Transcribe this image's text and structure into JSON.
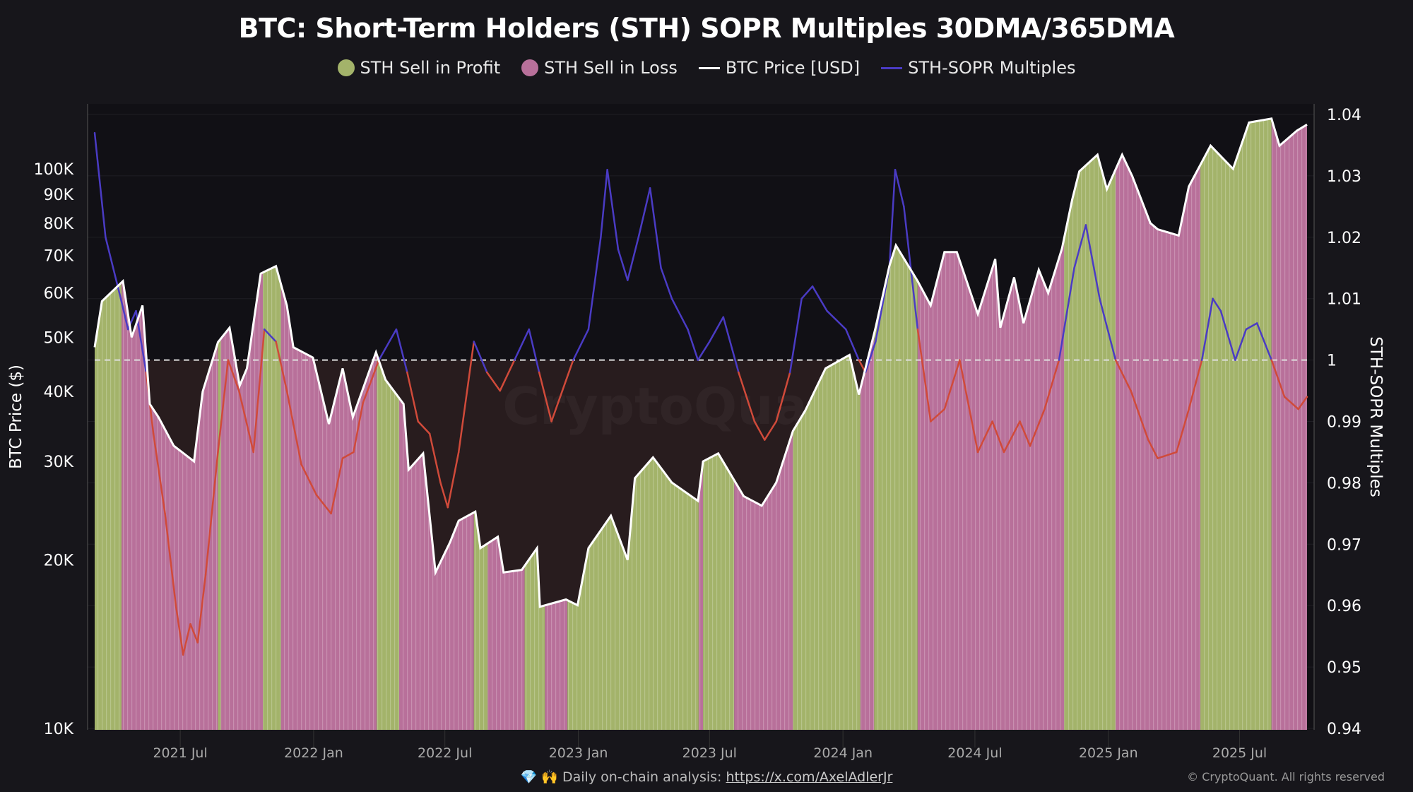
{
  "chart_data": {
    "type": "bar+line",
    "title": "BTC: Short-Term Holders (STH) SOPR Multiples 30DMA/365DMA",
    "legend": [
      {
        "name": "STH Sell in Profit",
        "color": "#a3b36a",
        "kind": "dot"
      },
      {
        "name": "STH Sell in Loss",
        "color": "#b8709a",
        "kind": "dot"
      },
      {
        "name": "BTC Price [USD]",
        "color": "#ffffff",
        "kind": "line"
      },
      {
        "name": "STH-SOPR Multiples",
        "color": "#4a3bc4",
        "kind": "line"
      }
    ],
    "legend_placement": "top-center",
    "ylabel_left": "BTC Price ($)",
    "ylabel_right": "STH-SOPR Multiples",
    "left_axis": {
      "scale": "log",
      "range": [
        10000,
        130000
      ],
      "ticks": [
        10000,
        20000,
        30000,
        40000,
        50000,
        60000,
        70000,
        80000,
        90000,
        100000
      ],
      "tick_labels": [
        "10K",
        "20K",
        "30K",
        "40K",
        "50K",
        "60K",
        "70K",
        "80K",
        "90K",
        "100K"
      ]
    },
    "right_axis": {
      "scale": "linear",
      "range": [
        0.94,
        1.04
      ],
      "ticks": [
        0.94,
        0.95,
        0.96,
        0.97,
        0.98,
        0.99,
        1,
        1.01,
        1.02,
        1.03,
        1.04
      ],
      "tick_labels": [
        "0.94",
        "0.95",
        "0.96",
        "0.97",
        "0.98",
        "0.99",
        "1",
        "1.01",
        "1.02",
        "1.03",
        "1.04"
      ]
    },
    "x_axis": {
      "range": [
        "2021-03-05",
        "2025-10-02"
      ],
      "ticks": [
        "2021-07-01",
        "2022-01-01",
        "2022-07-01",
        "2023-01-01",
        "2023-07-01",
        "2024-01-01",
        "2024-07-01",
        "2025-01-01",
        "2025-07-01"
      ],
      "tick_labels": [
        "2021 Jul",
        "2022 Jan",
        "2022 Jul",
        "2023 Jan",
        "2023 Jul",
        "2024 Jan",
        "2024 Jul",
        "2025 Jan",
        "2025 Jul"
      ]
    },
    "reference_line": {
      "value": 1,
      "style": "dashed"
    },
    "grid": true,
    "colors": {
      "profit": "#a3b36a",
      "loss": "#b8709a",
      "price": "#ffffff",
      "sopr_above": "#4a3bc4",
      "sopr_below": "#d04a3a",
      "below_one_area": "#281c1e"
    },
    "regimes": [
      [
        "2021-03-05",
        "2021-04-11",
        "profit"
      ],
      [
        "2021-04-11",
        "2021-08-22",
        "loss"
      ],
      [
        "2021-08-22",
        "2021-08-26",
        "profit"
      ],
      [
        "2021-08-26",
        "2021-10-23",
        "loss"
      ],
      [
        "2021-10-23",
        "2021-11-17",
        "profit"
      ],
      [
        "2021-11-17",
        "2022-03-29",
        "loss"
      ],
      [
        "2022-03-29",
        "2022-04-29",
        "profit"
      ],
      [
        "2022-04-29",
        "2022-08-10",
        "loss"
      ],
      [
        "2022-08-10",
        "2022-08-29",
        "profit"
      ],
      [
        "2022-08-29",
        "2022-10-19",
        "loss"
      ],
      [
        "2022-10-19",
        "2022-11-16",
        "profit"
      ],
      [
        "2022-11-16",
        "2022-12-17",
        "loss"
      ],
      [
        "2022-12-17",
        "2023-06-16",
        "profit"
      ],
      [
        "2023-06-16",
        "2023-06-22",
        "loss"
      ],
      [
        "2023-06-22",
        "2023-08-04",
        "profit"
      ],
      [
        "2023-08-04",
        "2023-10-24",
        "loss"
      ],
      [
        "2023-10-24",
        "2024-01-25",
        "profit"
      ],
      [
        "2024-01-25",
        "2024-02-13",
        "loss"
      ],
      [
        "2024-02-13",
        "2024-04-13",
        "profit"
      ],
      [
        "2024-04-13",
        "2024-11-01",
        "loss"
      ],
      [
        "2024-11-01",
        "2025-01-11",
        "profit"
      ],
      [
        "2025-01-11",
        "2025-05-08",
        "loss"
      ],
      [
        "2025-05-08",
        "2025-08-14",
        "profit"
      ],
      [
        "2025-08-14",
        "2025-10-02",
        "loss"
      ]
    ],
    "btc_price": [
      [
        "2021-03-05",
        48000
      ],
      [
        "2021-03-15",
        58000
      ],
      [
        "2021-04-13",
        63000
      ],
      [
        "2021-04-25",
        50000
      ],
      [
        "2021-05-10",
        57000
      ],
      [
        "2021-05-20",
        38000
      ],
      [
        "2021-06-01",
        36000
      ],
      [
        "2021-06-22",
        32000
      ],
      [
        "2021-07-20",
        30000
      ],
      [
        "2021-08-01",
        40000
      ],
      [
        "2021-08-22",
        49000
      ],
      [
        "2021-09-07",
        52000
      ],
      [
        "2021-09-21",
        41000
      ],
      [
        "2021-10-01",
        44000
      ],
      [
        "2021-10-20",
        65000
      ],
      [
        "2021-11-10",
        67000
      ],
      [
        "2021-11-25",
        57000
      ],
      [
        "2021-12-04",
        48000
      ],
      [
        "2021-12-31",
        46000
      ],
      [
        "2022-01-22",
        35000
      ],
      [
        "2022-02-10",
        44000
      ],
      [
        "2022-02-24",
        36000
      ],
      [
        "2022-03-28",
        47000
      ],
      [
        "2022-04-10",
        42000
      ],
      [
        "2022-05-05",
        38000
      ],
      [
        "2022-05-12",
        29000
      ],
      [
        "2022-06-01",
        31000
      ],
      [
        "2022-06-13",
        22000
      ],
      [
        "2022-06-18",
        19000
      ],
      [
        "2022-07-08",
        21500
      ],
      [
        "2022-07-20",
        23500
      ],
      [
        "2022-08-12",
        24400
      ],
      [
        "2022-08-19",
        21000
      ],
      [
        "2022-09-12",
        22000
      ],
      [
        "2022-09-20",
        19000
      ],
      [
        "2022-10-15",
        19200
      ],
      [
        "2022-11-05",
        21000
      ],
      [
        "2022-11-09",
        16500
      ],
      [
        "2022-12-15",
        17000
      ],
      [
        "2022-12-31",
        16600
      ],
      [
        "2023-01-15",
        21000
      ],
      [
        "2023-02-15",
        24000
      ],
      [
        "2023-03-10",
        20000
      ],
      [
        "2023-03-20",
        28000
      ],
      [
        "2023-04-14",
        30500
      ],
      [
        "2023-05-10",
        27500
      ],
      [
        "2023-06-15",
        25500
      ],
      [
        "2023-06-22",
        30000
      ],
      [
        "2023-07-13",
        31000
      ],
      [
        "2023-08-17",
        26000
      ],
      [
        "2023-09-11",
        25000
      ],
      [
        "2023-10-01",
        27500
      ],
      [
        "2023-10-24",
        34000
      ],
      [
        "2023-11-10",
        37000
      ],
      [
        "2023-12-08",
        44000
      ],
      [
        "2024-01-10",
        46500
      ],
      [
        "2024-01-23",
        39500
      ],
      [
        "2024-02-15",
        52000
      ],
      [
        "2024-03-05",
        67000
      ],
      [
        "2024-03-14",
        73000
      ],
      [
        "2024-04-13",
        63000
      ],
      [
        "2024-05-01",
        57000
      ],
      [
        "2024-05-20",
        71000
      ],
      [
        "2024-06-06",
        71000
      ],
      [
        "2024-07-05",
        55000
      ],
      [
        "2024-07-29",
        69000
      ],
      [
        "2024-08-05",
        52000
      ],
      [
        "2024-08-24",
        64000
      ],
      [
        "2024-09-06",
        53000
      ],
      [
        "2024-09-27",
        66000
      ],
      [
        "2024-10-10",
        60000
      ],
      [
        "2024-10-29",
        72000
      ],
      [
        "2024-11-12",
        88000
      ],
      [
        "2024-11-22",
        99000
      ],
      [
        "2024-12-17",
        106000
      ],
      [
        "2024-12-30",
        92000
      ],
      [
        "2025-01-20",
        106000
      ],
      [
        "2025-02-03",
        97000
      ],
      [
        "2025-02-28",
        80000
      ],
      [
        "2025-03-10",
        78000
      ],
      [
        "2025-04-08",
        76000
      ],
      [
        "2025-04-22",
        93000
      ],
      [
        "2025-05-22",
        110000
      ],
      [
        "2025-06-22",
        100000
      ],
      [
        "2025-07-14",
        121000
      ],
      [
        "2025-08-14",
        123000
      ],
      [
        "2025-08-25",
        110000
      ],
      [
        "2025-09-18",
        117000
      ],
      [
        "2025-10-02",
        120000
      ]
    ],
    "sopr_multiples": [
      [
        "2021-03-05",
        1.037
      ],
      [
        "2021-03-20",
        1.02
      ],
      [
        "2021-04-10",
        1.01
      ],
      [
        "2021-04-20",
        1.005
      ],
      [
        "2021-05-01",
        1.008
      ],
      [
        "2021-05-15",
        0.998
      ],
      [
        "2021-05-25",
        0.988
      ],
      [
        "2021-06-10",
        0.975
      ],
      [
        "2021-06-25",
        0.96
      ],
      [
        "2021-07-05",
        0.952
      ],
      [
        "2021-07-15",
        0.957
      ],
      [
        "2021-07-25",
        0.954
      ],
      [
        "2021-08-05",
        0.965
      ],
      [
        "2021-08-22",
        0.985
      ],
      [
        "2021-09-05",
        1.0
      ],
      [
        "2021-09-20",
        0.995
      ],
      [
        "2021-10-10",
        0.985
      ],
      [
        "2021-10-25",
        1.005
      ],
      [
        "2021-11-10",
        1.003
      ],
      [
        "2021-11-25",
        0.995
      ],
      [
        "2021-12-15",
        0.983
      ],
      [
        "2022-01-05",
        0.978
      ],
      [
        "2022-01-25",
        0.975
      ],
      [
        "2022-02-10",
        0.984
      ],
      [
        "2022-02-25",
        0.985
      ],
      [
        "2022-03-10",
        0.993
      ],
      [
        "2022-04-01",
        1.0
      ],
      [
        "2022-04-25",
        1.005
      ],
      [
        "2022-05-10",
        0.998
      ],
      [
        "2022-05-25",
        0.99
      ],
      [
        "2022-06-10",
        0.988
      ],
      [
        "2022-06-25",
        0.98
      ],
      [
        "2022-07-05",
        0.976
      ],
      [
        "2022-07-20",
        0.985
      ],
      [
        "2022-08-10",
        1.003
      ],
      [
        "2022-08-28",
        0.998
      ],
      [
        "2022-09-15",
        0.995
      ],
      [
        "2022-10-05",
        1.0
      ],
      [
        "2022-10-25",
        1.005
      ],
      [
        "2022-11-08",
        0.998
      ],
      [
        "2022-11-25",
        0.99
      ],
      [
        "2022-12-10",
        0.995
      ],
      [
        "2022-12-25",
        1.0
      ],
      [
        "2023-01-15",
        1.005
      ],
      [
        "2023-02-01",
        1.02
      ],
      [
        "2023-02-10",
        1.031
      ],
      [
        "2023-02-25",
        1.018
      ],
      [
        "2023-03-10",
        1.013
      ],
      [
        "2023-03-25",
        1.02
      ],
      [
        "2023-04-10",
        1.028
      ],
      [
        "2023-04-25",
        1.015
      ],
      [
        "2023-05-10",
        1.01
      ],
      [
        "2023-06-01",
        1.005
      ],
      [
        "2023-06-15",
        1.0
      ],
      [
        "2023-07-01",
        1.003
      ],
      [
        "2023-07-20",
        1.007
      ],
      [
        "2023-08-10",
        0.998
      ],
      [
        "2023-09-01",
        0.99
      ],
      [
        "2023-09-15",
        0.987
      ],
      [
        "2023-10-01",
        0.99
      ],
      [
        "2023-10-20",
        0.998
      ],
      [
        "2023-11-05",
        1.01
      ],
      [
        "2023-11-20",
        1.012
      ],
      [
        "2023-12-10",
        1.008
      ],
      [
        "2024-01-05",
        1.005
      ],
      [
        "2024-01-23",
        1.0
      ],
      [
        "2024-02-01",
        0.998
      ],
      [
        "2024-02-15",
        1.003
      ],
      [
        "2024-03-05",
        1.015
      ],
      [
        "2024-03-13",
        1.031
      ],
      [
        "2024-03-25",
        1.025
      ],
      [
        "2024-04-13",
        1.005
      ],
      [
        "2024-05-01",
        0.99
      ],
      [
        "2024-05-20",
        0.992
      ],
      [
        "2024-06-10",
        1.0
      ],
      [
        "2024-07-05",
        0.985
      ],
      [
        "2024-07-25",
        0.99
      ],
      [
        "2024-08-10",
        0.985
      ],
      [
        "2024-09-01",
        0.99
      ],
      [
        "2024-09-15",
        0.986
      ],
      [
        "2024-10-05",
        0.992
      ],
      [
        "2024-10-25",
        1.0
      ],
      [
        "2024-11-15",
        1.015
      ],
      [
        "2024-12-01",
        1.022
      ],
      [
        "2024-12-20",
        1.01
      ],
      [
        "2025-01-11",
        1.0
      ],
      [
        "2025-02-01",
        0.995
      ],
      [
        "2025-02-25",
        0.987
      ],
      [
        "2025-03-10",
        0.984
      ],
      [
        "2025-04-05",
        0.985
      ],
      [
        "2025-04-22",
        0.992
      ],
      [
        "2025-05-10",
        1.0
      ],
      [
        "2025-05-25",
        1.01
      ],
      [
        "2025-06-05",
        1.008
      ],
      [
        "2025-06-25",
        1.0
      ],
      [
        "2025-07-10",
        1.005
      ],
      [
        "2025-07-25",
        1.006
      ],
      [
        "2025-08-14",
        1.0
      ],
      [
        "2025-09-01",
        0.994
      ],
      [
        "2025-09-20",
        0.992
      ],
      [
        "2025-10-02",
        0.994
      ]
    ]
  },
  "watermark": "CryptoQuant",
  "footer": {
    "text": "Daily on-chain analysis: ",
    "link": "https://x.com/AxelAdlerJr",
    "icons": [
      "gem-icon",
      "hands-icon"
    ],
    "icon_glyphs": "💎 🙌"
  },
  "copyright": "© CryptoQuant. All rights reserved"
}
